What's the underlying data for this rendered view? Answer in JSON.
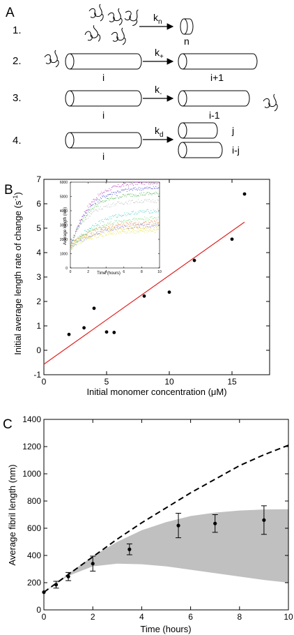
{
  "panel_a": {
    "panel_label": "A",
    "steps": [
      {
        "number": "1.",
        "rate": "k",
        "rate_sub": "n",
        "left": "",
        "right": "n",
        "right2": ""
      },
      {
        "number": "2.",
        "rate": "k",
        "rate_sub": "+",
        "left": "i",
        "right": "i+1",
        "right2": ""
      },
      {
        "number": "3.",
        "rate": "k",
        "rate_sub": "-",
        "left": "i",
        "right": "i-1",
        "right2": ""
      },
      {
        "number": "4.",
        "rate": "k",
        "rate_sub": "d",
        "left": "i",
        "right": "j",
        "right2": "i-j"
      }
    ]
  },
  "chart_data": [
    {
      "panel_label": "B",
      "type": "scatter",
      "xlabel": "Initial monomer concentration (μM)",
      "ylabel": "Initial average length rate of change (s",
      "ylabel_sup": "-1",
      "ylabel_end": ")",
      "xlim": [
        0,
        18
      ],
      "ylim": [
        -1,
        7
      ],
      "xticks": [
        0,
        5,
        10,
        15
      ],
      "yticks": [
        -1,
        0,
        1,
        2,
        3,
        4,
        5,
        6,
        7
      ],
      "points": {
        "x": [
          2,
          3.2,
          4,
          5,
          5.6,
          8,
          10,
          12,
          15,
          16
        ],
        "y": [
          0.65,
          0.92,
          1.72,
          0.75,
          0.73,
          2.22,
          2.38,
          3.68,
          4.55,
          6.4
        ]
      },
      "fit_line": {
        "x": [
          0,
          16
        ],
        "y": [
          -0.57,
          5.25
        ],
        "color": "#e02020"
      }
    },
    {
      "panel_label": "",
      "type": "scatter",
      "xlabel": "Time (hours)",
      "ylabel": "Average length (nm)",
      "xlim": [
        0,
        10
      ],
      "ylim": [
        0,
        6000
      ],
      "xticks": [
        0,
        2,
        4,
        6,
        8,
        10
      ],
      "yticks": [
        0,
        1000,
        2000,
        3000,
        4000,
        5000,
        6000
      ],
      "series": [
        {
          "end_value": 6000,
          "color": "#c040c0"
        },
        {
          "end_value": 5600,
          "color": "#4a4ad0"
        },
        {
          "end_value": 5200,
          "color": "#40b040"
        },
        {
          "end_value": 4700,
          "color": "#c0c0c0"
        },
        {
          "end_value": 4000,
          "color": "#40d0c0"
        },
        {
          "end_value": 3500,
          "color": "#80e080"
        },
        {
          "end_value": 3200,
          "color": "#e08040"
        },
        {
          "end_value": 2900,
          "color": "#e0c020"
        },
        {
          "end_value": 3000,
          "color": "#9090e0"
        },
        {
          "end_value": 2600,
          "color": "#e0e040"
        }
      ]
    },
    {
      "panel_label": "C",
      "type": "line",
      "xlabel": "Time (hours)",
      "ylabel": "Average fibril length (nm)",
      "xlim": [
        0,
        10
      ],
      "ylim": [
        0,
        1400
      ],
      "xticks": [
        0,
        2,
        4,
        6,
        8,
        10
      ],
      "yticks": [
        0,
        200,
        400,
        600,
        800,
        1000,
        1200,
        1400
      ],
      "points": {
        "x": [
          0,
          0.5,
          1,
          2,
          3.5,
          5.5,
          7,
          9
        ],
        "y": [
          130,
          185,
          245,
          340,
          445,
          620,
          635,
          660
        ],
        "err": [
          0,
          25,
          30,
          55,
          40,
          90,
          65,
          105
        ]
      },
      "dashed_curve": {
        "x": [
          0,
          1,
          2,
          3,
          4,
          5,
          6,
          7,
          8,
          9,
          10
        ],
        "y": [
          130,
          260,
          390,
          520,
          640,
          750,
          860,
          960,
          1060,
          1140,
          1210
        ]
      },
      "band": {
        "x": [
          0,
          1,
          2,
          3,
          4,
          5,
          6,
          7,
          8,
          9,
          10
        ],
        "upper": [
          130,
          265,
          395,
          500,
          585,
          645,
          690,
          715,
          730,
          738,
          740
        ],
        "lower": [
          130,
          250,
          320,
          340,
          335,
          320,
          295,
          270,
          245,
          220,
          200
        ],
        "color": "#c0c0c0"
      }
    }
  ]
}
